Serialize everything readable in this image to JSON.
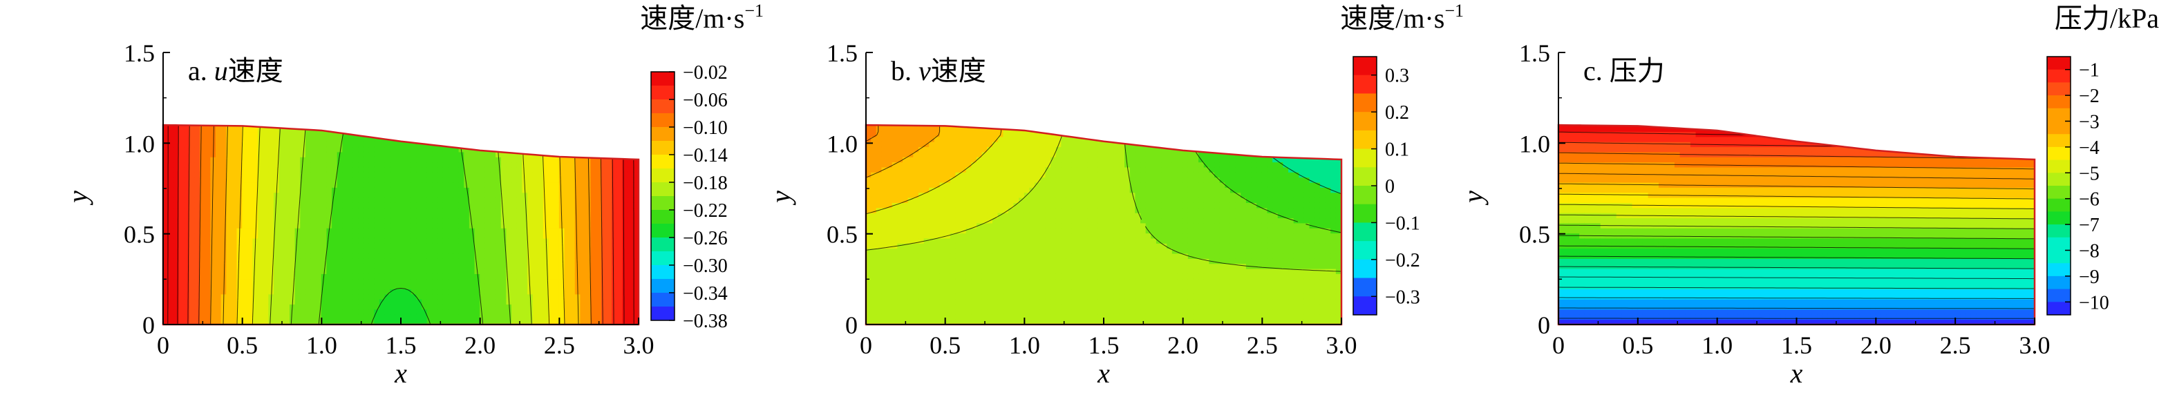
{
  "figure": {
    "palette": [
      "#2828ff",
      "#1464ff",
      "#00a0ff",
      "#00dcff",
      "#00f0c8",
      "#00e68c",
      "#14dc28",
      "#3cdc14",
      "#78e614",
      "#b4f014",
      "#dcf00a",
      "#ffeb00",
      "#ffc800",
      "#ffa000",
      "#ff7800",
      "#ff5014",
      "#ff2814",
      "#ee0a0a"
    ],
    "outline_color": "#d21e1e",
    "contour_line_color": "#000000"
  },
  "chart_data": [
    {
      "type": "contour",
      "panel_label": "a. ",
      "panel_var": "u",
      "panel_suffix": "速度",
      "colorbar_title": "速度/m·s",
      "colorbar_title_sup": "−1",
      "xlabel": "x",
      "ylabel": "y",
      "xlim": [
        0,
        3.0
      ],
      "ylim": [
        0,
        1.5
      ],
      "xticks": [
        "0",
        "0.5",
        "1.0",
        "1.5",
        "2.0",
        "2.5",
        "3.0"
      ],
      "yticks": [
        "0",
        "0.5",
        "1.0",
        "1.5"
      ],
      "surface": [
        [
          0,
          1.1
        ],
        [
          0.5,
          1.095
        ],
        [
          1.0,
          1.07
        ],
        [
          1.5,
          1.01
        ],
        [
          2.0,
          0.96
        ],
        [
          2.5,
          0.925
        ],
        [
          3.0,
          0.91
        ]
      ],
      "levels": [
        -0.38,
        -0.36,
        -0.34,
        -0.32,
        -0.3,
        -0.28,
        -0.26,
        -0.24,
        -0.22,
        -0.2,
        -0.18,
        -0.16,
        -0.14,
        -0.12,
        -0.1,
        -0.08,
        -0.06,
        -0.04,
        -0.02
      ],
      "colorbar_ticks": [
        "−0.02",
        "−0.06",
        "−0.10",
        "−0.14",
        "−0.18",
        "−0.22",
        "−0.26",
        "−0.30",
        "−0.34",
        "−0.38"
      ],
      "colorbar_tick_values": [
        -0.02,
        -0.06,
        -0.1,
        -0.14,
        -0.18,
        -0.22,
        -0.26,
        -0.3,
        -0.34,
        -0.38
      ],
      "value_range": [
        -0.245,
        -0.005
      ],
      "field": "u"
    },
    {
      "type": "contour",
      "panel_label": "b. ",
      "panel_var": "v",
      "panel_suffix": "速度",
      "colorbar_title": "速度/m·s",
      "colorbar_title_sup": "−1",
      "xlabel": "x",
      "ylabel": "y",
      "xlim": [
        0,
        3.0
      ],
      "ylim": [
        0,
        1.5
      ],
      "xticks": [
        "0",
        "0.5",
        "1.0",
        "1.5",
        "2.0",
        "2.5",
        "3.0"
      ],
      "yticks": [
        "0",
        "0.5",
        "1.0",
        "1.5"
      ],
      "surface": [
        [
          0,
          1.1
        ],
        [
          0.5,
          1.095
        ],
        [
          1.0,
          1.07
        ],
        [
          1.5,
          1.01
        ],
        [
          2.0,
          0.96
        ],
        [
          2.5,
          0.925
        ],
        [
          3.0,
          0.91
        ]
      ],
      "levels": [
        -0.35,
        -0.3,
        -0.25,
        -0.2,
        -0.15,
        -0.1,
        -0.05,
        0,
        0.05,
        0.1,
        0.15,
        0.2,
        0.25,
        0.3,
        0.35
      ],
      "colorbar_ticks": [
        "0.3",
        "0.2",
        "0.1",
        "0",
        "−0.1",
        "−0.2",
        "−0.3"
      ],
      "colorbar_tick_values": [
        0.3,
        0.2,
        0.1,
        0,
        -0.1,
        -0.2,
        -0.3
      ],
      "value_range": [
        -0.12,
        0.2
      ],
      "field": "v"
    },
    {
      "type": "contour",
      "panel_label": "c. 压力",
      "panel_var": "",
      "panel_suffix": "",
      "colorbar_title": "压力/kPa",
      "colorbar_title_sup": "",
      "xlabel": "x",
      "ylabel": "y",
      "xlim": [
        0,
        3.0
      ],
      "ylim": [
        0,
        1.5
      ],
      "xticks": [
        "0",
        "0.5",
        "1.0",
        "1.5",
        "2.0",
        "2.5",
        "3.0"
      ],
      "yticks": [
        "0",
        "0.5",
        "1.0",
        "1.5"
      ],
      "surface": [
        [
          0,
          1.1
        ],
        [
          0.5,
          1.095
        ],
        [
          1.0,
          1.07
        ],
        [
          1.5,
          1.01
        ],
        [
          2.0,
          0.96
        ],
        [
          2.5,
          0.925
        ],
        [
          3.0,
          0.91
        ]
      ],
      "levels": [
        -10.5,
        -10,
        -9.5,
        -9,
        -8.5,
        -8,
        -7.5,
        -7,
        -6.5,
        -6,
        -5.5,
        -5,
        -4.5,
        -4,
        -3.5,
        -3,
        -2.5,
        -2,
        -1.5,
        -1,
        -0.5
      ],
      "colorbar_ticks": [
        "−1",
        "−2",
        "−3",
        "−4",
        "−5",
        "−6",
        "−7",
        "−8",
        "−9",
        "−10"
      ],
      "colorbar_tick_values": [
        -1,
        -2,
        -3,
        -4,
        -5,
        -6,
        -7,
        -8,
        -9,
        -10
      ],
      "value_range": [
        -10.5,
        -0.5
      ],
      "field": "p"
    }
  ]
}
